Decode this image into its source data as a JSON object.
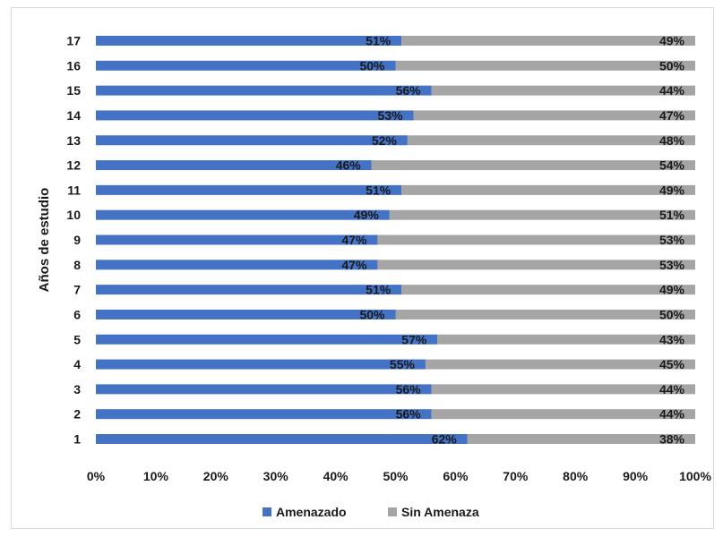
{
  "chart_data": {
    "type": "bar",
    "orientation": "horizontal",
    "stacked": "percent",
    "ylabel": "Años de estudio",
    "xlabel": "",
    "categories": [
      "1",
      "2",
      "3",
      "4",
      "5",
      "6",
      "7",
      "8",
      "9",
      "10",
      "11",
      "12",
      "13",
      "14",
      "15",
      "16",
      "17"
    ],
    "series": [
      {
        "name": "Amenazado",
        "color": "#4472c4",
        "values": [
          62,
          56,
          56,
          55,
          57,
          50,
          51,
          47,
          47,
          49,
          51,
          46,
          52,
          53,
          56,
          50,
          51
        ],
        "labels": [
          "62%",
          "56%",
          "56%",
          "55%",
          "57%",
          "50%",
          "51%",
          "47%",
          "47%",
          "49%",
          "51%",
          "46%",
          "52%",
          "53%",
          "56%",
          "50%",
          "51%"
        ]
      },
      {
        "name": "Sin Amenaza",
        "color": "#a5a5a5",
        "values": [
          38,
          44,
          44,
          45,
          43,
          50,
          49,
          53,
          53,
          51,
          49,
          54,
          48,
          47,
          44,
          50,
          49
        ],
        "labels": [
          "38%",
          "44%",
          "44%",
          "45%",
          "43%",
          "50%",
          "49%",
          "53%",
          "53%",
          "51%",
          "49%",
          "54%",
          "48%",
          "47%",
          "44%",
          "50%",
          "49%"
        ]
      }
    ],
    "xticks": [
      "0%",
      "10%",
      "20%",
      "30%",
      "40%",
      "50%",
      "60%",
      "70%",
      "80%",
      "90%",
      "100%"
    ],
    "xlim": [
      0,
      100
    ],
    "legend_position": "bottom",
    "grid": false
  }
}
